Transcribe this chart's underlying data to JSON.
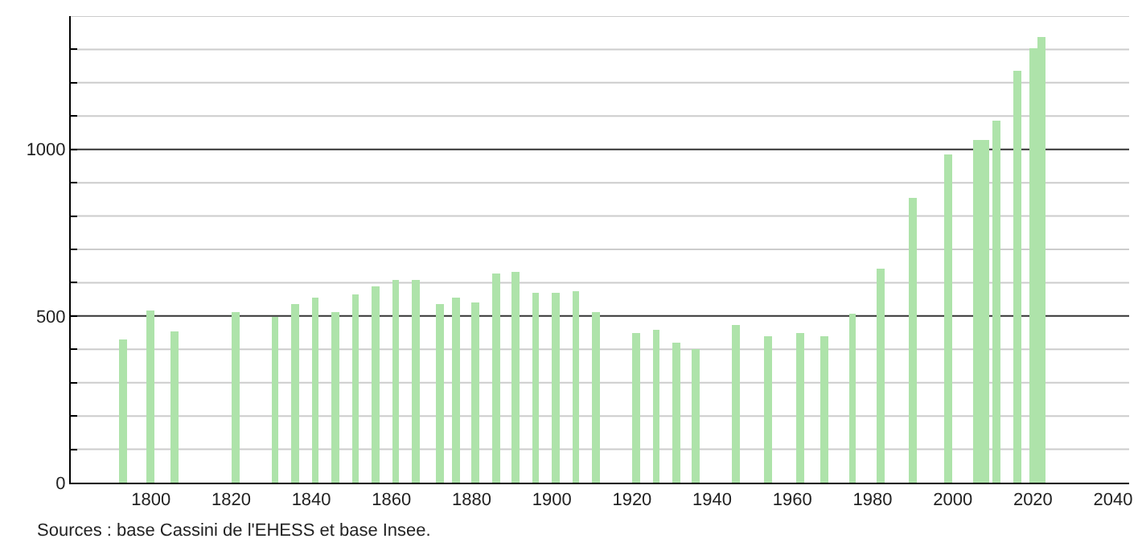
{
  "chart_data": {
    "type": "bar",
    "color": "#aee3aa",
    "x": [
      1793,
      1800,
      1806,
      1821,
      1831,
      1836,
      1841,
      1846,
      1851,
      1856,
      1861,
      1866,
      1872,
      1876,
      1881,
      1886,
      1891,
      1896,
      1901,
      1906,
      1911,
      1921,
      1926,
      1931,
      1936,
      1946,
      1954,
      1962,
      1968,
      1975,
      1982,
      1990,
      1999,
      2006,
      2008,
      2011,
      2016,
      2020,
      2022
    ],
    "values": [
      431,
      518,
      455,
      513,
      497,
      537,
      553,
      513,
      566,
      590,
      610,
      610,
      537,
      553,
      542,
      629,
      634,
      571,
      571,
      576,
      513,
      447,
      460,
      419,
      402,
      474,
      440,
      448,
      440,
      508,
      642,
      855,
      987,
      1029,
      1029,
      1087,
      1234,
      1303,
      1335
    ],
    "xlim": [
      1780,
      2044
    ],
    "xticks": [
      1800,
      1820,
      1840,
      1860,
      1880,
      1900,
      1920,
      1940,
      1960,
      1980,
      2000,
      2020,
      2040
    ],
    "ylim": [
      0,
      1400
    ],
    "yticks": [
      0,
      {
        "value": 100,
        "label": null
      },
      {
        "value": 200,
        "label": null
      },
      {
        "value": 300,
        "label": null
      },
      {
        "value": 400,
        "label": null
      },
      500,
      {
        "value": 600,
        "label": null
      },
      {
        "value": 700,
        "label": null
      },
      {
        "value": 800,
        "label": null
      },
      {
        "value": 900,
        "label": null
      },
      1000,
      {
        "value": 1100,
        "label": null
      },
      {
        "value": 1200,
        "label": null
      },
      {
        "value": 1300,
        "label": null
      },
      {
        "value": 1400,
        "label": null
      }
    ],
    "grid": "y",
    "annotations": [
      "Sources : base Cassini de l'EHESS et base Insee."
    ]
  }
}
